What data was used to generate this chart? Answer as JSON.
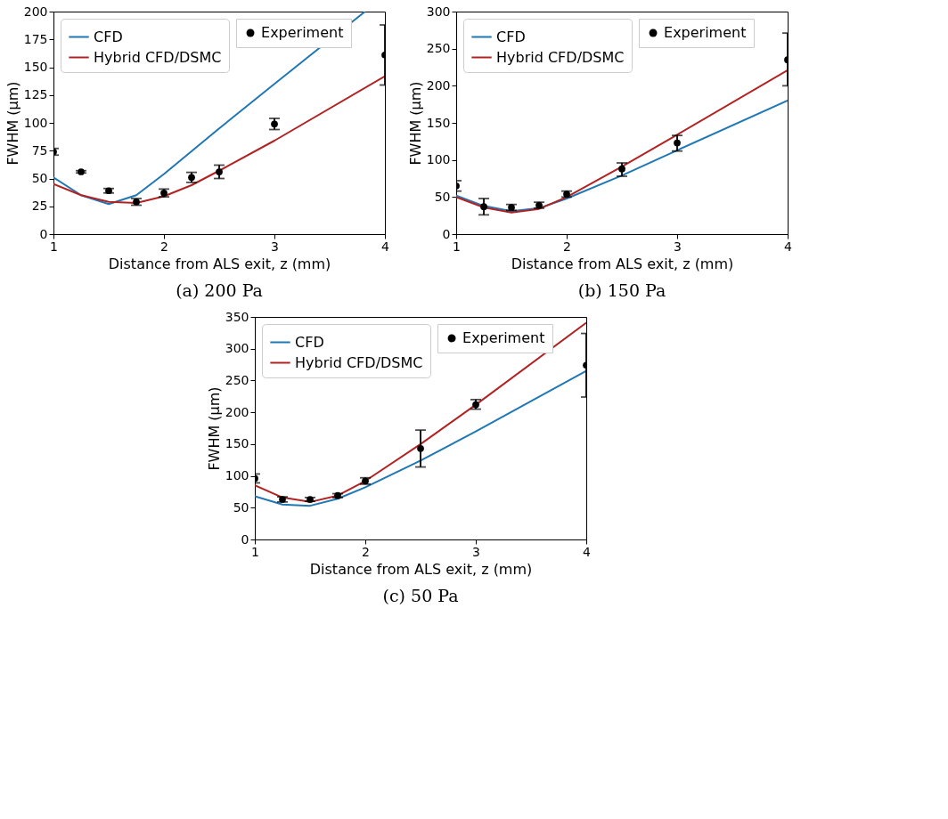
{
  "chart_data": [
    {
      "type": "line",
      "title": "(a)  200 Pa",
      "xlabel": "Distance from ALS exit, z (mm)",
      "ylabel": "FWHM (μm)",
      "xlim": [
        1,
        4
      ],
      "xticks": [
        1,
        2,
        3,
        4
      ],
      "ylim": [
        0,
        200
      ],
      "yticks": [
        0,
        25,
        50,
        75,
        100,
        125,
        150,
        175,
        200
      ],
      "grid": false,
      "legend": "top left",
      "series": [
        {
          "name": "CFD",
          "type": "line",
          "color": "#1f77b4",
          "line_style": "solid",
          "x": [
            1,
            1.25,
            1.5,
            1.75,
            2,
            2.5,
            3,
            3.82
          ],
          "values": [
            51,
            35,
            27,
            35,
            54,
            95,
            135,
            200
          ]
        },
        {
          "name": "Hybrid CFD/DSMC",
          "type": "line",
          "color": "#b22222",
          "line_style": "solid",
          "x": [
            1,
            1.25,
            1.5,
            1.75,
            2,
            2.25,
            2.5,
            3,
            4
          ],
          "values": [
            45,
            35,
            29,
            28,
            34,
            44,
            57,
            84,
            142
          ]
        },
        {
          "name": "Experiment",
          "type": "scatter",
          "color": "#000000",
          "marker": "circle",
          "x": [
            1,
            1.25,
            1.5,
            1.75,
            2,
            2.25,
            2.5,
            3,
            4
          ],
          "values": [
            74,
            56,
            39,
            29,
            37,
            51,
            56,
            99,
            161
          ],
          "errors": [
            3,
            1,
            2,
            3,
            3.5,
            4.5,
            6,
            5,
            [
              134,
              188
            ]
          ]
        }
      ]
    },
    {
      "type": "line",
      "title": "(b)  150 Pa",
      "xlabel": "Distance from ALS exit, z (mm)",
      "ylabel": "FWHM (μm)",
      "xlim": [
        1,
        4
      ],
      "xticks": [
        1,
        2,
        3,
        4
      ],
      "ylim": [
        0,
        300
      ],
      "yticks": [
        0,
        50,
        100,
        150,
        200,
        250,
        300
      ],
      "grid": false,
      "legend": "top left",
      "series": [
        {
          "name": "CFD",
          "type": "line",
          "color": "#1f77b4",
          "line_style": "solid",
          "x": [
            1,
            1.25,
            1.5,
            1.75,
            2,
            2.5,
            3,
            4
          ],
          "values": [
            52,
            38,
            31,
            35,
            48,
            79,
            113,
            180
          ]
        },
        {
          "name": "Hybrid CFD/DSMC",
          "type": "line",
          "color": "#b22222",
          "line_style": "solid",
          "x": [
            1,
            1.25,
            1.5,
            1.75,
            2,
            2.5,
            3,
            4
          ],
          "values": [
            50,
            36,
            29,
            34,
            50,
            91,
            134,
            221
          ]
        },
        {
          "name": "Experiment",
          "type": "scatter",
          "color": "#000000",
          "marker": "circle",
          "x": [
            1,
            1.25,
            1.5,
            1.75,
            2,
            2.5,
            3,
            4
          ],
          "values": [
            65,
            37,
            36,
            39,
            54,
            88,
            123,
            235
          ],
          "errors": [
            [
              58,
              72
            ],
            [
              26,
              48
            ],
            4,
            4,
            4,
            [
              78,
              96
            ],
            [
              112,
              133
            ],
            [
              200,
              271
            ]
          ]
        }
      ]
    },
    {
      "type": "line",
      "title": "(c)  50 Pa",
      "xlabel": "Distance from ALS exit, z (mm)",
      "ylabel": "FWHM (μm)",
      "xlim": [
        1,
        4
      ],
      "xticks": [
        1,
        2,
        3,
        4
      ],
      "ylim": [
        0,
        350
      ],
      "yticks": [
        0,
        50,
        100,
        150,
        200,
        250,
        300,
        350
      ],
      "grid": false,
      "legend": "top left",
      "series": [
        {
          "name": "CFD",
          "type": "line",
          "color": "#1f77b4",
          "line_style": "solid",
          "x": [
            1,
            1.25,
            1.5,
            1.75,
            2,
            2.5,
            3,
            4
          ],
          "values": [
            68,
            55,
            53,
            64,
            82,
            124,
            170,
            265
          ]
        },
        {
          "name": "Hybrid CFD/DSMC",
          "type": "line",
          "color": "#b22222",
          "line_style": "solid",
          "x": [
            1,
            1.25,
            1.5,
            1.75,
            2,
            2.5,
            3,
            4
          ],
          "values": [
            85,
            66,
            59,
            69,
            92,
            150,
            212,
            341
          ]
        },
        {
          "name": "Experiment",
          "type": "scatter",
          "color": "#000000",
          "marker": "circle",
          "x": [
            1,
            1.25,
            1.5,
            1.75,
            2,
            2.5,
            3,
            4
          ],
          "values": [
            96,
            63,
            63,
            69,
            92,
            143,
            212,
            274
          ],
          "errors": [
            [
              89,
              103
            ],
            4,
            3,
            3,
            5,
            [
              114,
              172
            ],
            [
              205,
              220
            ],
            [
              224,
              324
            ]
          ]
        }
      ]
    }
  ]
}
